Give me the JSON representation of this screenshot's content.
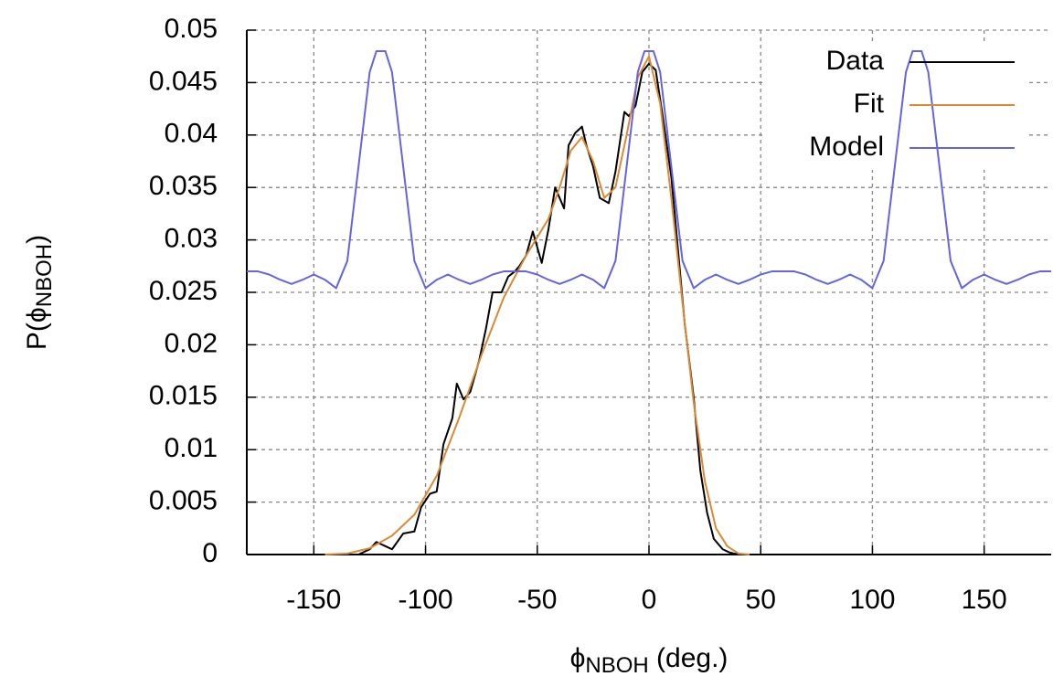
{
  "chart_data": {
    "type": "line",
    "xlabel": [
      "ϕ",
      "NBOH",
      " (deg.)"
    ],
    "ylabel": [
      "P(ϕ",
      "NBOH",
      ")"
    ],
    "xlim": [
      -180,
      180
    ],
    "ylim": [
      0,
      0.05
    ],
    "xticks": [
      -150,
      -100,
      -50,
      0,
      50,
      100,
      150
    ],
    "yticks": [
      0,
      0.005,
      0.01,
      0.015,
      0.02,
      0.025,
      0.03,
      0.035,
      0.04,
      0.045,
      0.05
    ],
    "grid": true,
    "legend": "top-right",
    "series": [
      {
        "name": "Data",
        "color": "#000000",
        "x": [
          -130,
          -125,
          -122,
          -118,
          -115,
          -110,
          -105,
          -102,
          -98,
          -95,
          -92,
          -88,
          -86,
          -83,
          -80,
          -76,
          -73,
          -70,
          -66,
          -63,
          -60,
          -58,
          -55,
          -52,
          -48,
          -45,
          -42,
          -38,
          -36,
          -33,
          -30,
          -28,
          -25,
          -22,
          -18,
          -15,
          -11,
          -9,
          -6,
          -3,
          0,
          3,
          6,
          10,
          13,
          16,
          20,
          23,
          26,
          29,
          33,
          36,
          40
        ],
        "values": [
          0,
          0.0005,
          0.0012,
          0.0008,
          0.0005,
          0.002,
          0.0022,
          0.0045,
          0.0058,
          0.006,
          0.0105,
          0.013,
          0.0163,
          0.0148,
          0.0155,
          0.0185,
          0.0215,
          0.025,
          0.025,
          0.0265,
          0.027,
          0.0275,
          0.0285,
          0.0308,
          0.0278,
          0.031,
          0.035,
          0.033,
          0.039,
          0.0402,
          0.0408,
          0.039,
          0.037,
          0.034,
          0.0335,
          0.0365,
          0.0422,
          0.0418,
          0.0428,
          0.046,
          0.0468,
          0.0462,
          0.042,
          0.036,
          0.029,
          0.022,
          0.015,
          0.008,
          0.004,
          0.0015,
          0.0005,
          0.0002,
          0
        ]
      },
      {
        "name": "Fit",
        "color": "#da8a35",
        "x": [
          -145,
          -135,
          -125,
          -115,
          -105,
          -95,
          -85,
          -75,
          -65,
          -55,
          -45,
          -40,
          -35,
          -30,
          -25,
          -20,
          -15,
          -10,
          -5,
          0,
          5,
          10,
          15,
          20,
          25,
          30,
          35,
          40,
          45
        ],
        "values": [
          0,
          0.0001,
          0.0006,
          0.0018,
          0.0038,
          0.0075,
          0.013,
          0.019,
          0.0245,
          0.0285,
          0.032,
          0.035,
          0.0385,
          0.0398,
          0.0375,
          0.034,
          0.035,
          0.04,
          0.0455,
          0.0475,
          0.043,
          0.034,
          0.024,
          0.0145,
          0.007,
          0.0025,
          0.0008,
          0.0001,
          0
        ]
      },
      {
        "name": "Model",
        "color": "#6464e0",
        "x": [
          -180,
          -175,
          -170,
          -165,
          -160,
          -155,
          -150,
          -145,
          -140,
          -135,
          -130,
          -125,
          -122,
          -118,
          -115,
          -110,
          -105,
          -100,
          -95,
          -90,
          -85,
          -80,
          -75,
          -70,
          -65,
          -60,
          -55,
          -50,
          -45,
          -40,
          -35,
          -30,
          -25,
          -20,
          -15,
          -10,
          -5,
          -2,
          2,
          5,
          10,
          15,
          20,
          25,
          30,
          35,
          40,
          45,
          50,
          55,
          60,
          65,
          70,
          75,
          80,
          85,
          90,
          95,
          100,
          105,
          110,
          115,
          118,
          122,
          125,
          130,
          135,
          140,
          145,
          150,
          155,
          160,
          165,
          170,
          175,
          180
        ],
        "values": [
          0.027,
          0.027,
          0.0267,
          0.0262,
          0.0258,
          0.0262,
          0.0267,
          0.0262,
          0.0254,
          0.028,
          0.037,
          0.046,
          0.048,
          0.048,
          0.046,
          0.037,
          0.028,
          0.0254,
          0.0262,
          0.0267,
          0.0262,
          0.0258,
          0.0262,
          0.0267,
          0.027,
          0.027,
          0.027,
          0.0267,
          0.0262,
          0.0258,
          0.0262,
          0.0267,
          0.0262,
          0.0254,
          0.028,
          0.037,
          0.046,
          0.048,
          0.048,
          0.046,
          0.037,
          0.028,
          0.0254,
          0.0262,
          0.0267,
          0.0262,
          0.0258,
          0.0262,
          0.0267,
          0.027,
          0.027,
          0.027,
          0.0267,
          0.0262,
          0.0258,
          0.0262,
          0.0267,
          0.0262,
          0.0254,
          0.028,
          0.037,
          0.046,
          0.048,
          0.048,
          0.046,
          0.037,
          0.028,
          0.0254,
          0.0262,
          0.0267,
          0.0262,
          0.0258,
          0.0262,
          0.0267,
          0.027,
          0.027
        ]
      }
    ]
  }
}
